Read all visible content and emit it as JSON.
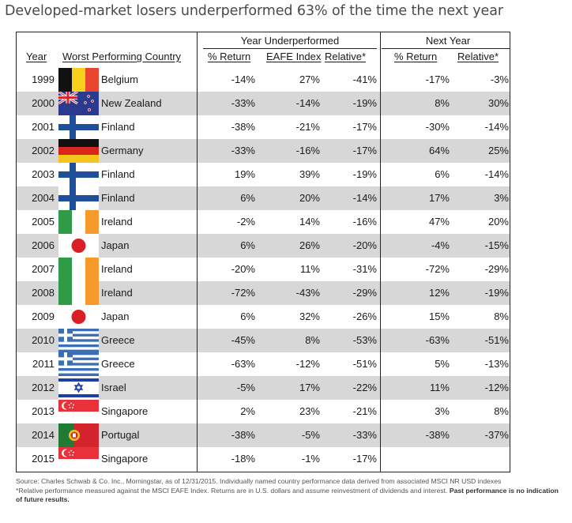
{
  "headline": "Developed-market losers underperformed 63% of the time the next year",
  "group_headers": {
    "year_underperformed": "Year Underperformed",
    "next_year": "Next Year"
  },
  "columns": {
    "year": "Year",
    "country": "Worst Performing Country",
    "ret": "% Return",
    "eafe": "EAFE Index",
    "rel": "Relative*",
    "next_ret": "% Return",
    "next_rel": "Relative*"
  },
  "rows": [
    {
      "year": "1999",
      "country": "Belgium",
      "flag": "belgium-flag-icon",
      "ret": "-14%",
      "eafe": "27%",
      "rel": "-41%",
      "next_ret": "-17%",
      "next_rel": "-3%"
    },
    {
      "year": "2000",
      "country": "New Zealand",
      "flag": "new-zealand-flag-icon",
      "ret": "-33%",
      "eafe": "-14%",
      "rel": "-19%",
      "next_ret": "8%",
      "next_rel": "30%"
    },
    {
      "year": "2001",
      "country": "Finland",
      "flag": "finland-flag-icon",
      "ret": "-38%",
      "eafe": "-21%",
      "rel": "-17%",
      "next_ret": "-30%",
      "next_rel": "-14%"
    },
    {
      "year": "2002",
      "country": "Germany",
      "flag": "germany-flag-icon",
      "ret": "-33%",
      "eafe": "-16%",
      "rel": "-17%",
      "next_ret": "64%",
      "next_rel": "25%"
    },
    {
      "year": "2003",
      "country": "Finland",
      "flag": "finland-flag-icon",
      "ret": "19%",
      "eafe": "39%",
      "rel": "-19%",
      "next_ret": "6%",
      "next_rel": "-14%"
    },
    {
      "year": "2004",
      "country": "Finland",
      "flag": "finland-flag-icon",
      "ret": "6%",
      "eafe": "20%",
      "rel": "-14%",
      "next_ret": "17%",
      "next_rel": "3%"
    },
    {
      "year": "2005",
      "country": "Ireland",
      "flag": "ireland-flag-icon",
      "ret": "-2%",
      "eafe": "14%",
      "rel": "-16%",
      "next_ret": "47%",
      "next_rel": "20%"
    },
    {
      "year": "2006",
      "country": "Japan",
      "flag": "japan-flag-icon",
      "ret": "6%",
      "eafe": "26%",
      "rel": "-20%",
      "next_ret": "-4%",
      "next_rel": "-15%"
    },
    {
      "year": "2007",
      "country": "Ireland",
      "flag": "ireland-flag-icon",
      "ret": "-20%",
      "eafe": "11%",
      "rel": "-31%",
      "next_ret": "-72%",
      "next_rel": "-29%"
    },
    {
      "year": "2008",
      "country": "Ireland",
      "flag": "ireland-flag-icon",
      "ret": "-72%",
      "eafe": "-43%",
      "rel": "-29%",
      "next_ret": "12%",
      "next_rel": "-19%"
    },
    {
      "year": "2009",
      "country": "Japan",
      "flag": "japan-flag-icon",
      "ret": "6%",
      "eafe": "32%",
      "rel": "-26%",
      "next_ret": "15%",
      "next_rel": "8%"
    },
    {
      "year": "2010",
      "country": "Greece",
      "flag": "greece-flag-icon",
      "ret": "-45%",
      "eafe": "8%",
      "rel": "-53%",
      "next_ret": "-63%",
      "next_rel": "-51%"
    },
    {
      "year": "2011",
      "country": "Greece",
      "flag": "greece-flag-icon",
      "ret": "-63%",
      "eafe": "-12%",
      "rel": "-51%",
      "next_ret": "5%",
      "next_rel": "-13%"
    },
    {
      "year": "2012",
      "country": "Israel",
      "flag": "israel-flag-icon",
      "ret": "-5%",
      "eafe": "17%",
      "rel": "-22%",
      "next_ret": "11%",
      "next_rel": "-12%"
    },
    {
      "year": "2013",
      "country": "Singapore",
      "flag": "singapore-flag-icon",
      "ret": "2%",
      "eafe": "23%",
      "rel": "-21%",
      "next_ret": "3%",
      "next_rel": "8%"
    },
    {
      "year": "2014",
      "country": "Portugal",
      "flag": "portugal-flag-icon",
      "ret": "-38%",
      "eafe": "-5%",
      "rel": "-33%",
      "next_ret": "-38%",
      "next_rel": "-37%"
    },
    {
      "year": "2015",
      "country": "Singapore",
      "flag": "singapore-flag-icon",
      "ret": "-18%",
      "eafe": "-1%",
      "rel": "-17%",
      "next_ret": "",
      "next_rel": ""
    }
  ],
  "footnotes": {
    "source": "Source: Charles Schwab & Co. Inc., Morningstar, as of 12/31/2015. Individually named country performance data derived from associated MSCI NR USD indexes",
    "relative_note": "*Relative performance measured against the MSCI EAFE Index. Returns are in U.S. dollars and assume reinvestment of dividends and interest.",
    "disclaimer": "Past performance is no indication of future results."
  },
  "colors": {
    "row_shade": "#d7d7d7",
    "border": "#222222",
    "headline": "#4a4a4a"
  }
}
